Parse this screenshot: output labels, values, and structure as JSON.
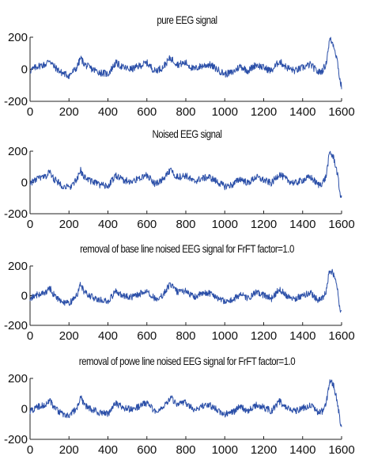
{
  "chart_data": [
    {
      "type": "line",
      "title": "pure EEG signal",
      "xlabel": "",
      "ylabel": "",
      "xlim": [
        0,
        1600
      ],
      "ylim": [
        -200,
        200
      ],
      "xticks": [
        "0",
        "200",
        "400",
        "600",
        "800",
        "1000",
        "1200",
        "1400",
        "1600"
      ],
      "yticks": [
        "200",
        "0",
        "-200"
      ],
      "grid": false,
      "series": [
        {
          "color": "#2b4fa8",
          "x": [
            0,
            40,
            80,
            100,
            120,
            160,
            200,
            240,
            260,
            280,
            320,
            360,
            400,
            440,
            480,
            520,
            560,
            600,
            640,
            680,
            720,
            760,
            800,
            840,
            880,
            920,
            960,
            1000,
            1040,
            1080,
            1120,
            1160,
            1200,
            1240,
            1280,
            1320,
            1360,
            1400,
            1440,
            1480,
            1500,
            1520,
            1530,
            1540,
            1550,
            1560,
            1570,
            1580,
            1590,
            1600
          ],
          "values": [
            -10,
            20,
            30,
            60,
            20,
            -20,
            -40,
            10,
            70,
            30,
            0,
            -20,
            -30,
            40,
            10,
            0,
            20,
            40,
            -10,
            10,
            70,
            30,
            40,
            0,
            20,
            30,
            0,
            -30,
            -20,
            20,
            -10,
            30,
            10,
            -10,
            50,
            10,
            -10,
            10,
            30,
            -20,
            -10,
            30,
            120,
            190,
            170,
            150,
            100,
            40,
            -60,
            -110
          ]
        }
      ]
    },
    {
      "type": "line",
      "title": "Noised EEG signal",
      "xlabel": "",
      "ylabel": "",
      "xlim": [
        0,
        1600
      ],
      "ylim": [
        -200,
        200
      ],
      "xticks": [
        "0",
        "200",
        "400",
        "600",
        "800",
        "1000",
        "1200",
        "1400",
        "1600"
      ],
      "yticks": [
        "200",
        "0",
        "-200"
      ],
      "grid": false,
      "series": [
        {
          "color": "#2b4fa8",
          "x": [
            0,
            40,
            80,
            100,
            120,
            160,
            200,
            240,
            260,
            280,
            320,
            360,
            400,
            440,
            480,
            520,
            560,
            600,
            640,
            680,
            720,
            760,
            800,
            840,
            880,
            920,
            960,
            1000,
            1040,
            1080,
            1120,
            1160,
            1200,
            1240,
            1280,
            1320,
            1360,
            1400,
            1440,
            1480,
            1500,
            1520,
            1530,
            1540,
            1550,
            1560,
            1570,
            1580,
            1590,
            1600
          ],
          "values": [
            -5,
            25,
            35,
            70,
            25,
            -15,
            -35,
            15,
            75,
            35,
            5,
            -15,
            -25,
            45,
            15,
            5,
            25,
            45,
            -5,
            15,
            75,
            35,
            45,
            5,
            25,
            35,
            5,
            -25,
            -15,
            25,
            -5,
            35,
            15,
            -5,
            55,
            15,
            -5,
            15,
            35,
            -15,
            -5,
            35,
            125,
            195,
            175,
            155,
            105,
            45,
            -55,
            -105
          ]
        }
      ]
    },
    {
      "type": "line",
      "title": "removal  of base line noised EEG signal for FrFT factor=1.0",
      "xlabel": "",
      "ylabel": "",
      "xlim": [
        0,
        1600
      ],
      "ylim": [
        -200,
        200
      ],
      "xticks": [
        "0",
        "200",
        "400",
        "600",
        "800",
        "1000",
        "1200",
        "1400",
        "1600"
      ],
      "yticks": [
        "200",
        "0",
        "-200"
      ],
      "grid": false,
      "series": [
        {
          "color": "#2b4fa8",
          "x": [
            0,
            40,
            80,
            100,
            120,
            160,
            200,
            240,
            260,
            280,
            320,
            360,
            400,
            440,
            480,
            520,
            560,
            600,
            640,
            680,
            720,
            760,
            800,
            840,
            880,
            920,
            960,
            1000,
            1040,
            1080,
            1120,
            1160,
            1200,
            1240,
            1280,
            1320,
            1360,
            1400,
            1440,
            1480,
            1500,
            1520,
            1530,
            1540,
            1550,
            1560,
            1570,
            1580,
            1590,
            1600
          ],
          "values": [
            -20,
            10,
            20,
            55,
            10,
            -40,
            -55,
            0,
            80,
            20,
            -10,
            -30,
            -40,
            30,
            0,
            -10,
            10,
            35,
            -20,
            0,
            80,
            20,
            35,
            -10,
            10,
            20,
            -10,
            -40,
            -30,
            10,
            -20,
            20,
            5,
            -20,
            45,
            0,
            -20,
            0,
            20,
            -30,
            -20,
            20,
            110,
            170,
            160,
            140,
            90,
            30,
            -70,
            -120
          ]
        }
      ]
    },
    {
      "type": "line",
      "title": "removal  of powe line noised EEG signal for FrFT factor=1.0",
      "xlabel": "",
      "ylabel": "",
      "xlim": [
        0,
        1600
      ],
      "ylim": [
        -200,
        200
      ],
      "xticks": [
        "0",
        "200",
        "400",
        "600",
        "800",
        "1000",
        "1200",
        "1400",
        "1600"
      ],
      "yticks": [
        "200",
        "0",
        "-200"
      ],
      "grid": false,
      "series": [
        {
          "color": "#2b4fa8",
          "x": [
            0,
            40,
            80,
            100,
            120,
            160,
            200,
            240,
            260,
            280,
            320,
            360,
            400,
            440,
            480,
            520,
            560,
            600,
            640,
            680,
            720,
            760,
            800,
            840,
            880,
            920,
            960,
            1000,
            1040,
            1080,
            1120,
            1160,
            1200,
            1240,
            1280,
            1320,
            1360,
            1400,
            1440,
            1480,
            1500,
            1520,
            1530,
            1540,
            1550,
            1560,
            1570,
            1580,
            1590,
            1600
          ],
          "values": [
            -15,
            15,
            25,
            60,
            15,
            -30,
            -50,
            5,
            75,
            25,
            -5,
            -25,
            -35,
            35,
            5,
            -5,
            15,
            40,
            -15,
            5,
            75,
            25,
            40,
            -5,
            15,
            25,
            -5,
            -35,
            -25,
            15,
            -15,
            25,
            10,
            -15,
            50,
            5,
            -15,
            5,
            25,
            -25,
            -15,
            25,
            115,
            185,
            170,
            150,
            95,
            35,
            -65,
            -115
          ]
        }
      ]
    }
  ]
}
